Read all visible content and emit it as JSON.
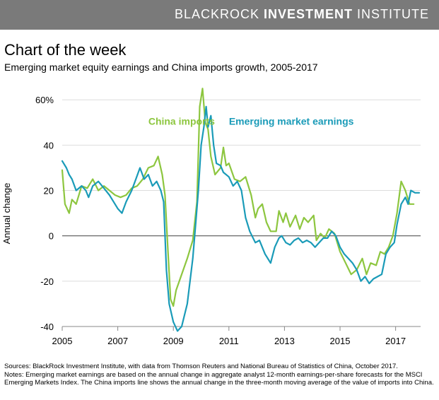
{
  "banner": {
    "prefix": "BLACKROCK ",
    "bold": "INVESTMENT",
    "suffix": " INSTITUTE"
  },
  "header": {
    "title": "Chart of the week",
    "subtitle": "Emerging market equity earnings and China imports growth, 2005-2017"
  },
  "chart_data": {
    "type": "line",
    "ylabel": "Annual change",
    "xlabel": "",
    "ylim": [
      -40,
      66
    ],
    "xlim": [
      2005,
      2017.9
    ],
    "yticks": [
      {
        "value": 60,
        "label": "60%"
      },
      {
        "value": 40,
        "label": "40"
      },
      {
        "value": 20,
        "label": "20"
      },
      {
        "value": 0,
        "label": "0"
      },
      {
        "value": -20,
        "label": "-20"
      },
      {
        "value": -40,
        "label": "-40"
      }
    ],
    "xticks": [
      {
        "value": 2005,
        "label": "2005"
      },
      {
        "value": 2007,
        "label": "2007"
      },
      {
        "value": 2009,
        "label": "2009"
      },
      {
        "value": 2011,
        "label": "2011"
      },
      {
        "value": 2013,
        "label": "2013"
      },
      {
        "value": 2015,
        "label": "2015"
      },
      {
        "value": 2017,
        "label": "2017"
      }
    ],
    "series": [
      {
        "name": "China imports",
        "color": "#8dc63f",
        "points": [
          [
            2005.0,
            29
          ],
          [
            2005.1,
            14
          ],
          [
            2005.25,
            10
          ],
          [
            2005.35,
            16
          ],
          [
            2005.5,
            14
          ],
          [
            2005.7,
            22
          ],
          [
            2005.9,
            21
          ],
          [
            2006.1,
            25
          ],
          [
            2006.3,
            20
          ],
          [
            2006.5,
            22
          ],
          [
            2006.7,
            20
          ],
          [
            2006.9,
            18
          ],
          [
            2007.1,
            17
          ],
          [
            2007.3,
            18
          ],
          [
            2007.5,
            21
          ],
          [
            2007.7,
            22
          ],
          [
            2007.9,
            25
          ],
          [
            2008.1,
            30
          ],
          [
            2008.3,
            31
          ],
          [
            2008.45,
            35
          ],
          [
            2008.6,
            27
          ],
          [
            2008.7,
            18
          ],
          [
            2008.8,
            -5
          ],
          [
            2008.9,
            -28
          ],
          [
            2009.0,
            -31
          ],
          [
            2009.1,
            -24
          ],
          [
            2009.3,
            -17
          ],
          [
            2009.5,
            -10
          ],
          [
            2009.7,
            -2
          ],
          [
            2009.85,
            15
          ],
          [
            2009.95,
            57
          ],
          [
            2010.05,
            65
          ],
          [
            2010.15,
            50
          ],
          [
            2010.25,
            47
          ],
          [
            2010.35,
            35
          ],
          [
            2010.5,
            27
          ],
          [
            2010.7,
            30
          ],
          [
            2010.8,
            39
          ],
          [
            2010.9,
            31
          ],
          [
            2011.0,
            32
          ],
          [
            2011.2,
            25
          ],
          [
            2011.4,
            24
          ],
          [
            2011.6,
            26
          ],
          [
            2011.8,
            18
          ],
          [
            2011.95,
            8
          ],
          [
            2012.05,
            12
          ],
          [
            2012.2,
            14
          ],
          [
            2012.35,
            6
          ],
          [
            2012.5,
            2
          ],
          [
            2012.7,
            2
          ],
          [
            2012.8,
            11
          ],
          [
            2012.95,
            6
          ],
          [
            2013.05,
            10
          ],
          [
            2013.2,
            4
          ],
          [
            2013.4,
            9
          ],
          [
            2013.55,
            3
          ],
          [
            2013.7,
            8
          ],
          [
            2013.85,
            6
          ],
          [
            2014.05,
            9
          ],
          [
            2014.15,
            -2
          ],
          [
            2014.3,
            1
          ],
          [
            2014.45,
            -1
          ],
          [
            2014.6,
            3
          ],
          [
            2014.8,
            1
          ],
          [
            2015.0,
            -7
          ],
          [
            2015.2,
            -12
          ],
          [
            2015.4,
            -17
          ],
          [
            2015.6,
            -15
          ],
          [
            2015.8,
            -10
          ],
          [
            2015.95,
            -17
          ],
          [
            2016.1,
            -12
          ],
          [
            2016.3,
            -13
          ],
          [
            2016.45,
            -7
          ],
          [
            2016.6,
            -8
          ],
          [
            2016.75,
            -5
          ],
          [
            2016.9,
            0
          ],
          [
            2017.05,
            10
          ],
          [
            2017.2,
            24
          ],
          [
            2017.35,
            20
          ],
          [
            2017.5,
            14
          ],
          [
            2017.65,
            14
          ]
        ]
      },
      {
        "name": "Emerging market earnings",
        "color": "#1a9bb8",
        "points": [
          [
            2005.0,
            33
          ],
          [
            2005.15,
            30
          ],
          [
            2005.25,
            27
          ],
          [
            2005.35,
            25
          ],
          [
            2005.5,
            20
          ],
          [
            2005.7,
            22
          ],
          [
            2005.85,
            20
          ],
          [
            2005.95,
            17
          ],
          [
            2006.1,
            22
          ],
          [
            2006.3,
            24
          ],
          [
            2006.5,
            21
          ],
          [
            2006.7,
            18
          ],
          [
            2006.85,
            15
          ],
          [
            2007.0,
            12
          ],
          [
            2007.15,
            10
          ],
          [
            2007.3,
            15
          ],
          [
            2007.5,
            20
          ],
          [
            2007.65,
            25
          ],
          [
            2007.8,
            30
          ],
          [
            2007.95,
            25
          ],
          [
            2008.1,
            27
          ],
          [
            2008.25,
            22
          ],
          [
            2008.4,
            24
          ],
          [
            2008.55,
            20
          ],
          [
            2008.65,
            15
          ],
          [
            2008.75,
            -15
          ],
          [
            2008.85,
            -30
          ],
          [
            2009.0,
            -38
          ],
          [
            2009.15,
            -42
          ],
          [
            2009.3,
            -40
          ],
          [
            2009.5,
            -30
          ],
          [
            2009.7,
            -10
          ],
          [
            2009.8,
            5
          ],
          [
            2009.9,
            20
          ],
          [
            2010.0,
            40
          ],
          [
            2010.1,
            48
          ],
          [
            2010.18,
            57
          ],
          [
            2010.25,
            48
          ],
          [
            2010.35,
            53
          ],
          [
            2010.45,
            40
          ],
          [
            2010.55,
            32
          ],
          [
            2010.7,
            31
          ],
          [
            2010.8,
            28
          ],
          [
            2011.0,
            26
          ],
          [
            2011.15,
            22
          ],
          [
            2011.3,
            24
          ],
          [
            2011.45,
            20
          ],
          [
            2011.6,
            8
          ],
          [
            2011.75,
            2
          ],
          [
            2011.95,
            -3
          ],
          [
            2012.1,
            -2
          ],
          [
            2012.3,
            -8
          ],
          [
            2012.5,
            -12
          ],
          [
            2012.65,
            -5
          ],
          [
            2012.8,
            -1
          ],
          [
            2012.9,
            0
          ],
          [
            2013.05,
            -3
          ],
          [
            2013.2,
            -4
          ],
          [
            2013.35,
            -2
          ],
          [
            2013.5,
            -1
          ],
          [
            2013.65,
            -3
          ],
          [
            2013.8,
            -2
          ],
          [
            2013.95,
            -3
          ],
          [
            2014.1,
            -5
          ],
          [
            2014.25,
            -3
          ],
          [
            2014.4,
            -1
          ],
          [
            2014.55,
            -1
          ],
          [
            2014.7,
            2
          ],
          [
            2014.85,
            0
          ],
          [
            2015.0,
            -5
          ],
          [
            2015.15,
            -8
          ],
          [
            2015.3,
            -10
          ],
          [
            2015.45,
            -12
          ],
          [
            2015.6,
            -15
          ],
          [
            2015.75,
            -20
          ],
          [
            2015.9,
            -18
          ],
          [
            2016.05,
            -21
          ],
          [
            2016.2,
            -19
          ],
          [
            2016.35,
            -18
          ],
          [
            2016.5,
            -17
          ],
          [
            2016.65,
            -8
          ],
          [
            2016.8,
            -5
          ],
          [
            2016.95,
            -3
          ],
          [
            2017.05,
            5
          ],
          [
            2017.2,
            14
          ],
          [
            2017.35,
            17
          ],
          [
            2017.45,
            14
          ],
          [
            2017.55,
            20
          ],
          [
            2017.7,
            19
          ],
          [
            2017.85,
            19
          ]
        ]
      }
    ],
    "labels": [
      {
        "text": "China imports",
        "color": "#8dc63f",
        "x": 2008.1,
        "y": 49
      },
      {
        "text": "Emerging market earnings",
        "color": "#1a9bb8",
        "x": 2011.0,
        "y": 49
      }
    ]
  },
  "footnote": {
    "source": "Sources: BlackRock Investment Institute, with data from Thomson Reuters and National Bureau of Statistics of China, October 2017.",
    "notes": "Notes: Emerging market earnings are based on the annual change in aggregate analyst 12-month earnings-per-share forecasts for the MSCI Emerging Markets Index. The China imports line shows the annual change in the three-month moving average of the value of imports into China."
  }
}
